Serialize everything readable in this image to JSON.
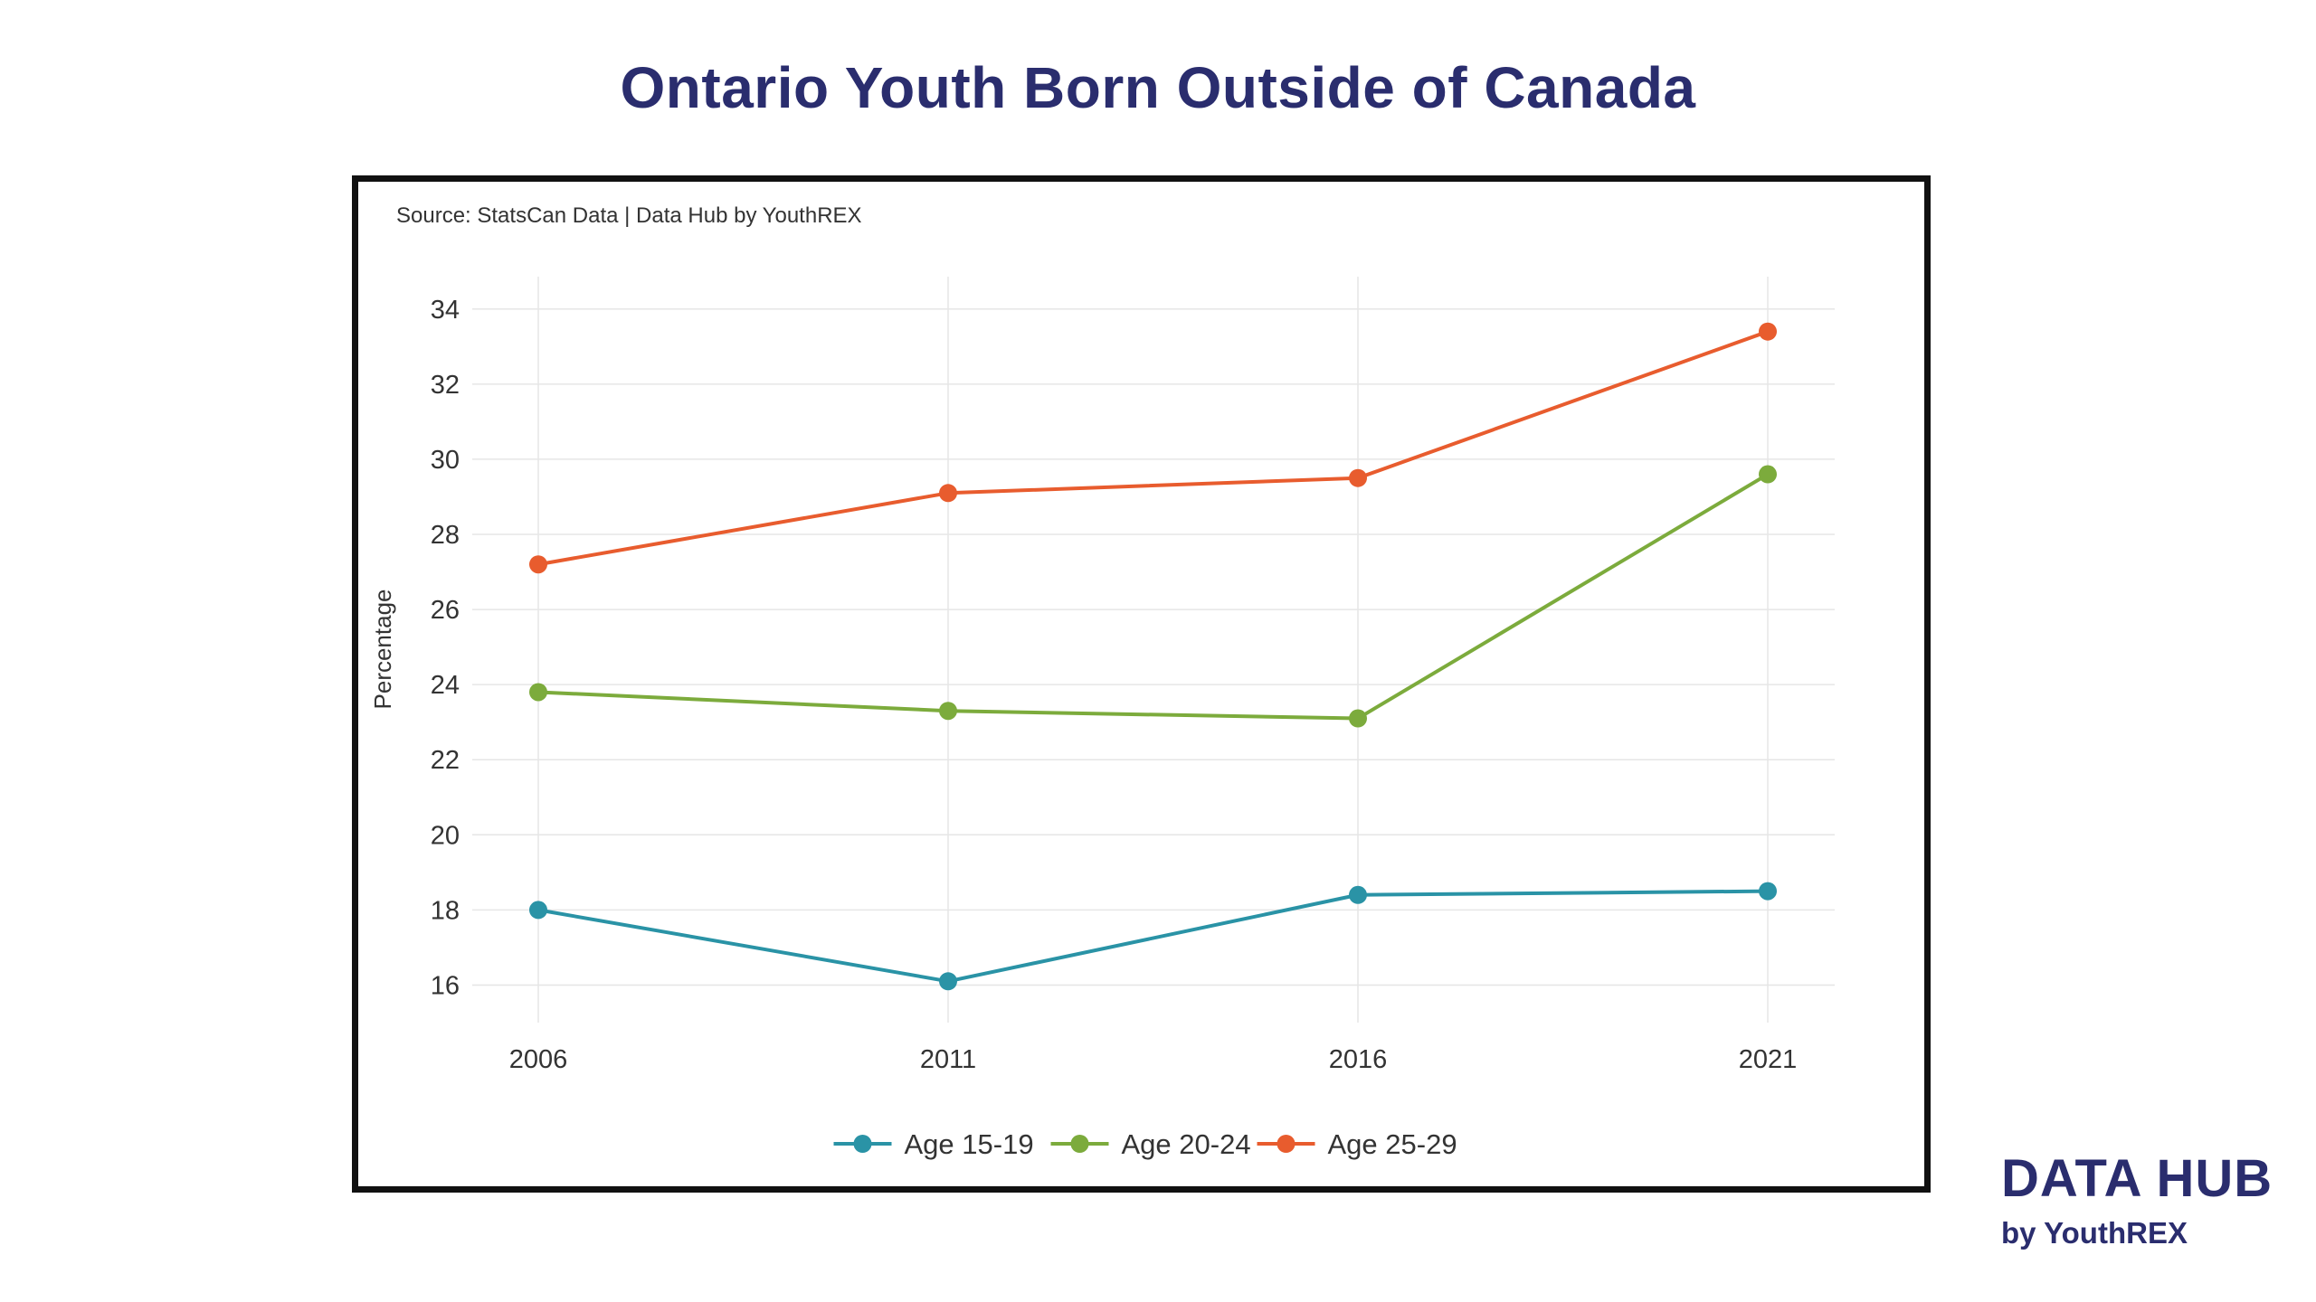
{
  "title": "Ontario Youth Born Outside of Canada",
  "source": "Source: StatsCan Data | Data Hub by YouthREX",
  "brand": {
    "main": "DATA HUB",
    "sub": "by YouthREX"
  },
  "chart_data": {
    "type": "line",
    "title": "Ontario Youth Born Outside of Canada",
    "xlabel": "",
    "ylabel": "Percentage",
    "categories": [
      "2006",
      "2011",
      "2016",
      "2021"
    ],
    "yticks": [
      16,
      18,
      20,
      22,
      24,
      26,
      28,
      30,
      32,
      34
    ],
    "ylim": [
      15,
      34.5
    ],
    "grid": true,
    "legend_position": "bottom-center",
    "series": [
      {
        "name": "Age 15-19",
        "color": "#2a93a6",
        "values": [
          18.0,
          16.1,
          18.4,
          18.5
        ]
      },
      {
        "name": "Age 20-24",
        "color": "#7cab3c",
        "values": [
          23.8,
          23.3,
          23.1,
          29.6
        ]
      },
      {
        "name": "Age 25-29",
        "color": "#e85c2e",
        "values": [
          27.2,
          29.1,
          29.5,
          33.4
        ]
      }
    ]
  }
}
